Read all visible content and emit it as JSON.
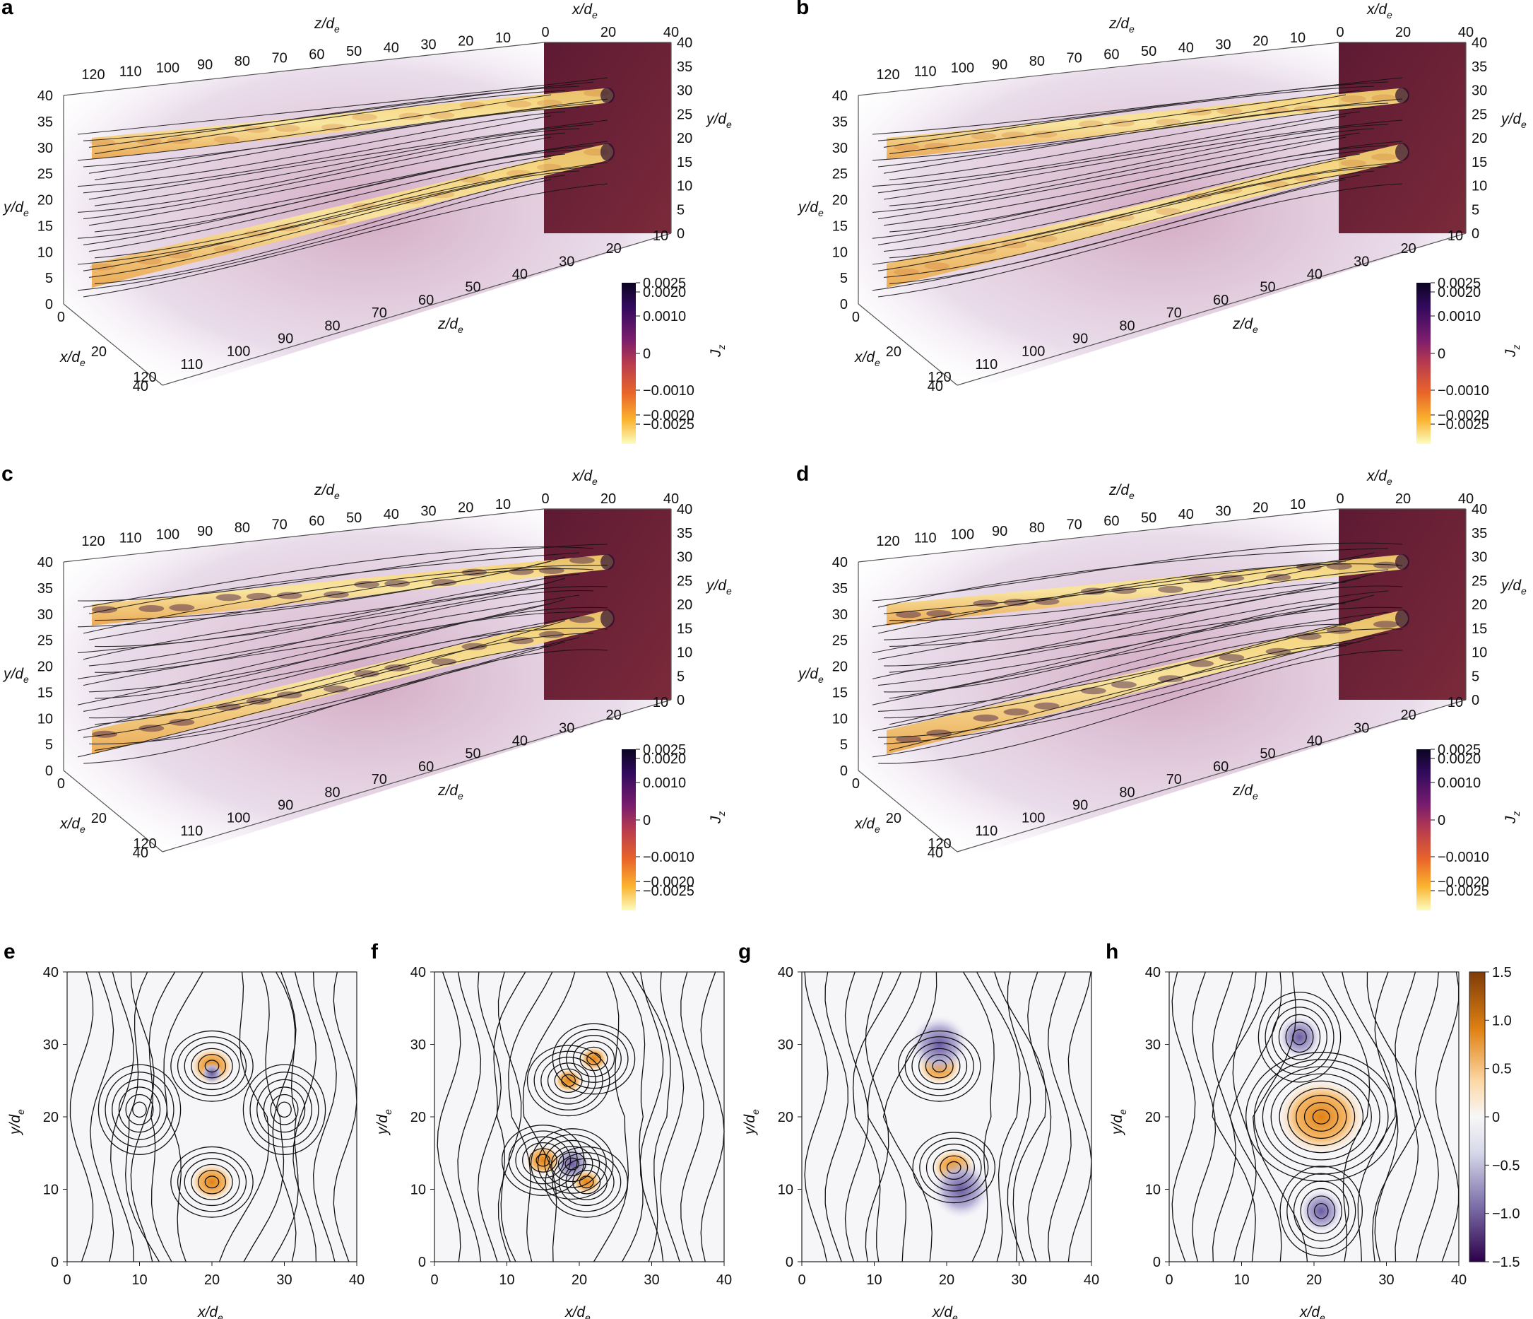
{
  "figure": {
    "panels_3d": [
      {
        "id": "a",
        "label": "a",
        "colorbar_label": "J",
        "colorbar_sub": "z",
        "colorbar_ticks": [
          "0.0025",
          "0.0020",
          "0.0010",
          "0",
          "−0.0010",
          "−0.0020",
          "−0.0025"
        ],
        "axis_z_label": "z/d",
        "axis_z_sub": "e",
        "axis_x_label": "x/d",
        "axis_x_sub": "e",
        "axis_y_label": "y/d",
        "axis_y_sub": "e",
        "top_z_ticks": [
          "120",
          "110",
          "100",
          "90",
          "80",
          "70",
          "60",
          "50",
          "40",
          "30",
          "20",
          "10"
        ],
        "x_ticks": [
          "0",
          "20",
          "40"
        ],
        "y_ticks_left": [
          "40",
          "35",
          "30",
          "25",
          "20",
          "15",
          "10",
          "5",
          "0"
        ],
        "y_ticks_right": [
          "40",
          "35",
          "30",
          "25",
          "20",
          "15",
          "10",
          "5",
          "0"
        ],
        "bottom_z_ticks": [
          "10",
          "20",
          "30",
          "40",
          "50",
          "60",
          "70",
          "80",
          "90",
          "100",
          "110",
          "120"
        ]
      },
      {
        "id": "b",
        "label": "b",
        "colorbar_label": "J",
        "colorbar_sub": "z",
        "colorbar_ticks": [
          "0.0025",
          "0.0020",
          "0.0010",
          "0",
          "−0.0010",
          "−0.0020",
          "−0.0025"
        ],
        "axis_z_label": "z/d",
        "axis_z_sub": "e",
        "axis_x_label": "x/d",
        "axis_x_sub": "e",
        "axis_y_label": "y/d",
        "axis_y_sub": "e",
        "top_z_ticks": [
          "120",
          "110",
          "100",
          "90",
          "80",
          "70",
          "60",
          "50",
          "40",
          "30",
          "20",
          "10"
        ],
        "x_ticks": [
          "0",
          "20",
          "40"
        ],
        "y_ticks_left": [
          "40",
          "35",
          "30",
          "25",
          "20",
          "15",
          "10",
          "5",
          "0"
        ],
        "y_ticks_right": [
          "40",
          "35",
          "30",
          "25",
          "20",
          "15",
          "10",
          "5",
          "0"
        ],
        "bottom_z_ticks": [
          "10",
          "20",
          "30",
          "40",
          "50",
          "60",
          "70",
          "80",
          "90",
          "100",
          "110",
          "120"
        ]
      },
      {
        "id": "c",
        "label": "c",
        "colorbar_label": "J",
        "colorbar_sub": "z",
        "colorbar_ticks": [
          "0.0025",
          "0.0020",
          "0.0010",
          "0",
          "−0.0010",
          "−0.0020",
          "−0.0025"
        ],
        "axis_z_label": "z/d",
        "axis_z_sub": "e",
        "axis_x_label": "x/d",
        "axis_x_sub": "e",
        "axis_y_label": "y/d",
        "axis_y_sub": "e",
        "top_z_ticks": [
          "120",
          "110",
          "100",
          "90",
          "80",
          "70",
          "60",
          "50",
          "40",
          "30",
          "20",
          "10"
        ],
        "x_ticks": [
          "0",
          "20",
          "40"
        ],
        "y_ticks_left": [
          "40",
          "35",
          "30",
          "25",
          "20",
          "15",
          "10",
          "5",
          "0"
        ],
        "y_ticks_right": [
          "40",
          "35",
          "30",
          "25",
          "20",
          "15",
          "10",
          "5",
          "0"
        ],
        "bottom_z_ticks": [
          "10",
          "20",
          "30",
          "40",
          "50",
          "60",
          "70",
          "80",
          "90",
          "100",
          "110",
          "120"
        ]
      },
      {
        "id": "d",
        "label": "d",
        "colorbar_label": "J",
        "colorbar_sub": "z",
        "colorbar_ticks": [
          "0.0025",
          "0.0020",
          "0.0010",
          "0",
          "−0.0010",
          "−0.0020",
          "−0.0025"
        ],
        "axis_z_label": "z/d",
        "axis_z_sub": "e",
        "axis_x_label": "x/d",
        "axis_x_sub": "e",
        "axis_y_label": "y/d",
        "axis_y_sub": "e",
        "top_z_ticks": [
          "120",
          "110",
          "100",
          "90",
          "80",
          "70",
          "60",
          "50",
          "40",
          "30",
          "20",
          "10"
        ],
        "x_ticks": [
          "0",
          "20",
          "40"
        ],
        "y_ticks_left": [
          "40",
          "35",
          "30",
          "25",
          "20",
          "15",
          "10",
          "5",
          "0"
        ],
        "y_ticks_right": [
          "40",
          "35",
          "30",
          "25",
          "20",
          "15",
          "10",
          "5",
          "0"
        ],
        "bottom_z_ticks": [
          "10",
          "20",
          "30",
          "40",
          "50",
          "60",
          "70",
          "80",
          "90",
          "100",
          "110",
          "120"
        ]
      }
    ],
    "panels_2d": [
      {
        "id": "e",
        "label": "e",
        "xlabel": "x/d",
        "xsub": "e",
        "ylabel": "y/d",
        "ysub": "e",
        "xticks": [
          "0",
          "10",
          "20",
          "30",
          "40"
        ],
        "yticks": [
          "0",
          "10",
          "20",
          "30",
          "40"
        ]
      },
      {
        "id": "f",
        "label": "f",
        "xlabel": "x/d",
        "xsub": "e",
        "ylabel": "y/d",
        "ysub": "e",
        "xticks": [
          "0",
          "10",
          "20",
          "30",
          "40"
        ],
        "yticks": [
          "0",
          "10",
          "20",
          "30",
          "40"
        ]
      },
      {
        "id": "g",
        "label": "g",
        "xlabel": "x/d",
        "xsub": "e",
        "ylabel": "y/d",
        "ysub": "e",
        "xticks": [
          "0",
          "10",
          "20",
          "30",
          "40"
        ],
        "yticks": [
          "0",
          "10",
          "20",
          "30",
          "40"
        ]
      },
      {
        "id": "h",
        "label": "h",
        "xlabel": "x/d",
        "xsub": "e",
        "ylabel": "y/d",
        "ysub": "e",
        "xticks": [
          "0",
          "10",
          "20",
          "30",
          "40"
        ],
        "yticks": [
          "0",
          "10",
          "20",
          "30",
          "40"
        ]
      }
    ],
    "colorbar_2d": {
      "ticks": [
        "1.5",
        "1.0",
        "0.5",
        "0",
        "−0.5",
        "−1.0",
        "−1.5"
      ]
    },
    "colors": {
      "inferno_dark": "#2a0a3e",
      "inferno_mid": "#9c2b5c",
      "inferno_orange": "#f39a2a",
      "inferno_light": "#fbf3a6",
      "haze": "#d8c6dc",
      "wall": "#5a1a2e",
      "puor_orange": "#b35806",
      "puor_purple": "#3f0a68"
    }
  },
  "chart_data": [
    {
      "type": "heatmap",
      "panel": "a",
      "colorbar": {
        "label": "J_z",
        "range": [
          -0.0025,
          0.0025
        ]
      },
      "xlim": [
        0,
        40
      ],
      "ylim": [
        0,
        40
      ],
      "zlim": [
        0,
        125
      ]
    },
    {
      "type": "heatmap",
      "panel": "b",
      "colorbar": {
        "label": "J_z",
        "range": [
          -0.0025,
          0.0025
        ]
      },
      "xlim": [
        0,
        40
      ],
      "ylim": [
        0,
        40
      ],
      "zlim": [
        0,
        125
      ]
    },
    {
      "type": "heatmap",
      "panel": "c",
      "colorbar": {
        "label": "J_z",
        "range": [
          -0.0025,
          0.0025
        ]
      },
      "xlim": [
        0,
        40
      ],
      "ylim": [
        0,
        40
      ],
      "zlim": [
        0,
        125
      ]
    },
    {
      "type": "heatmap",
      "panel": "d",
      "colorbar": {
        "label": "J_z",
        "range": [
          -0.0025,
          0.0025
        ]
      },
      "xlim": [
        0,
        40
      ],
      "ylim": [
        0,
        40
      ],
      "zlim": [
        0,
        125
      ]
    },
    {
      "type": "heatmap",
      "panel": "e",
      "xlim": [
        0,
        40
      ],
      "ylim": [
        0,
        40
      ],
      "colorbar_range": [
        -1.5,
        1.5
      ],
      "features": [
        {
          "x": 20,
          "y": 27,
          "sign": "positive"
        },
        {
          "x": 20,
          "y": 11,
          "sign": "positive"
        },
        {
          "x": 10,
          "y": 21,
          "kind": "contour-o-point"
        },
        {
          "x": 30,
          "y": 21,
          "kind": "contour-o-point"
        }
      ]
    },
    {
      "type": "heatmap",
      "panel": "f",
      "xlim": [
        0,
        40
      ],
      "ylim": [
        0,
        40
      ],
      "colorbar_range": [
        -1.5,
        1.5
      ],
      "features": [
        {
          "x": 22,
          "y": 28,
          "sign": "positive"
        },
        {
          "x": 18.5,
          "y": 25,
          "sign": "positive"
        },
        {
          "x": 19,
          "y": 13.5,
          "sign": "negative"
        },
        {
          "x": 21,
          "y": 11,
          "sign": "positive"
        },
        {
          "x": 15,
          "y": 14,
          "sign": "positive"
        }
      ]
    },
    {
      "type": "heatmap",
      "panel": "g",
      "xlim": [
        0,
        40
      ],
      "ylim": [
        0,
        40
      ],
      "colorbar_range": [
        -1.5,
        1.5
      ],
      "features": [
        {
          "x": 19,
          "y": 27,
          "sign": "positive"
        },
        {
          "x": 21,
          "y": 13,
          "sign": "positive"
        }
      ]
    },
    {
      "type": "heatmap",
      "panel": "h",
      "xlim": [
        0,
        40
      ],
      "ylim": [
        0,
        40
      ],
      "colorbar_range": [
        -1.5,
        1.5
      ],
      "features": [
        {
          "x": 21,
          "y": 20,
          "sign": "positive"
        },
        {
          "x": 18,
          "y": 31,
          "kind": "contour-o-point"
        },
        {
          "x": 21,
          "y": 7,
          "kind": "contour-o-point"
        }
      ]
    }
  ]
}
